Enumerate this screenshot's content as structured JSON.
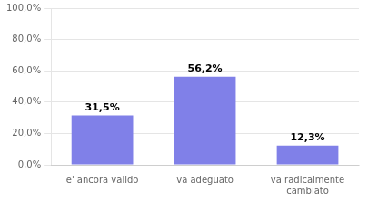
{
  "chart_data": {
    "type": "bar",
    "categories": [
      "e' ancora valido",
      "va adeguato",
      "va radicalmente\ncambiato"
    ],
    "values": [
      31.5,
      56.2,
      12.3
    ],
    "value_labels": [
      "31,5%",
      "56,2%",
      "12,3%"
    ],
    "color": "#8080e8",
    "ylim": [
      0,
      100
    ],
    "yticks": [
      {
        "value": 0,
        "label": "0,0%"
      },
      {
        "value": 20,
        "label": "20,0%"
      },
      {
        "value": 40,
        "label": "40,0%"
      },
      {
        "value": 60,
        "label": "60,0%"
      },
      {
        "value": 80,
        "label": "80,0%"
      },
      {
        "value": 100,
        "label": "100,0%"
      }
    ],
    "grid": true,
    "data_labels": true
  }
}
